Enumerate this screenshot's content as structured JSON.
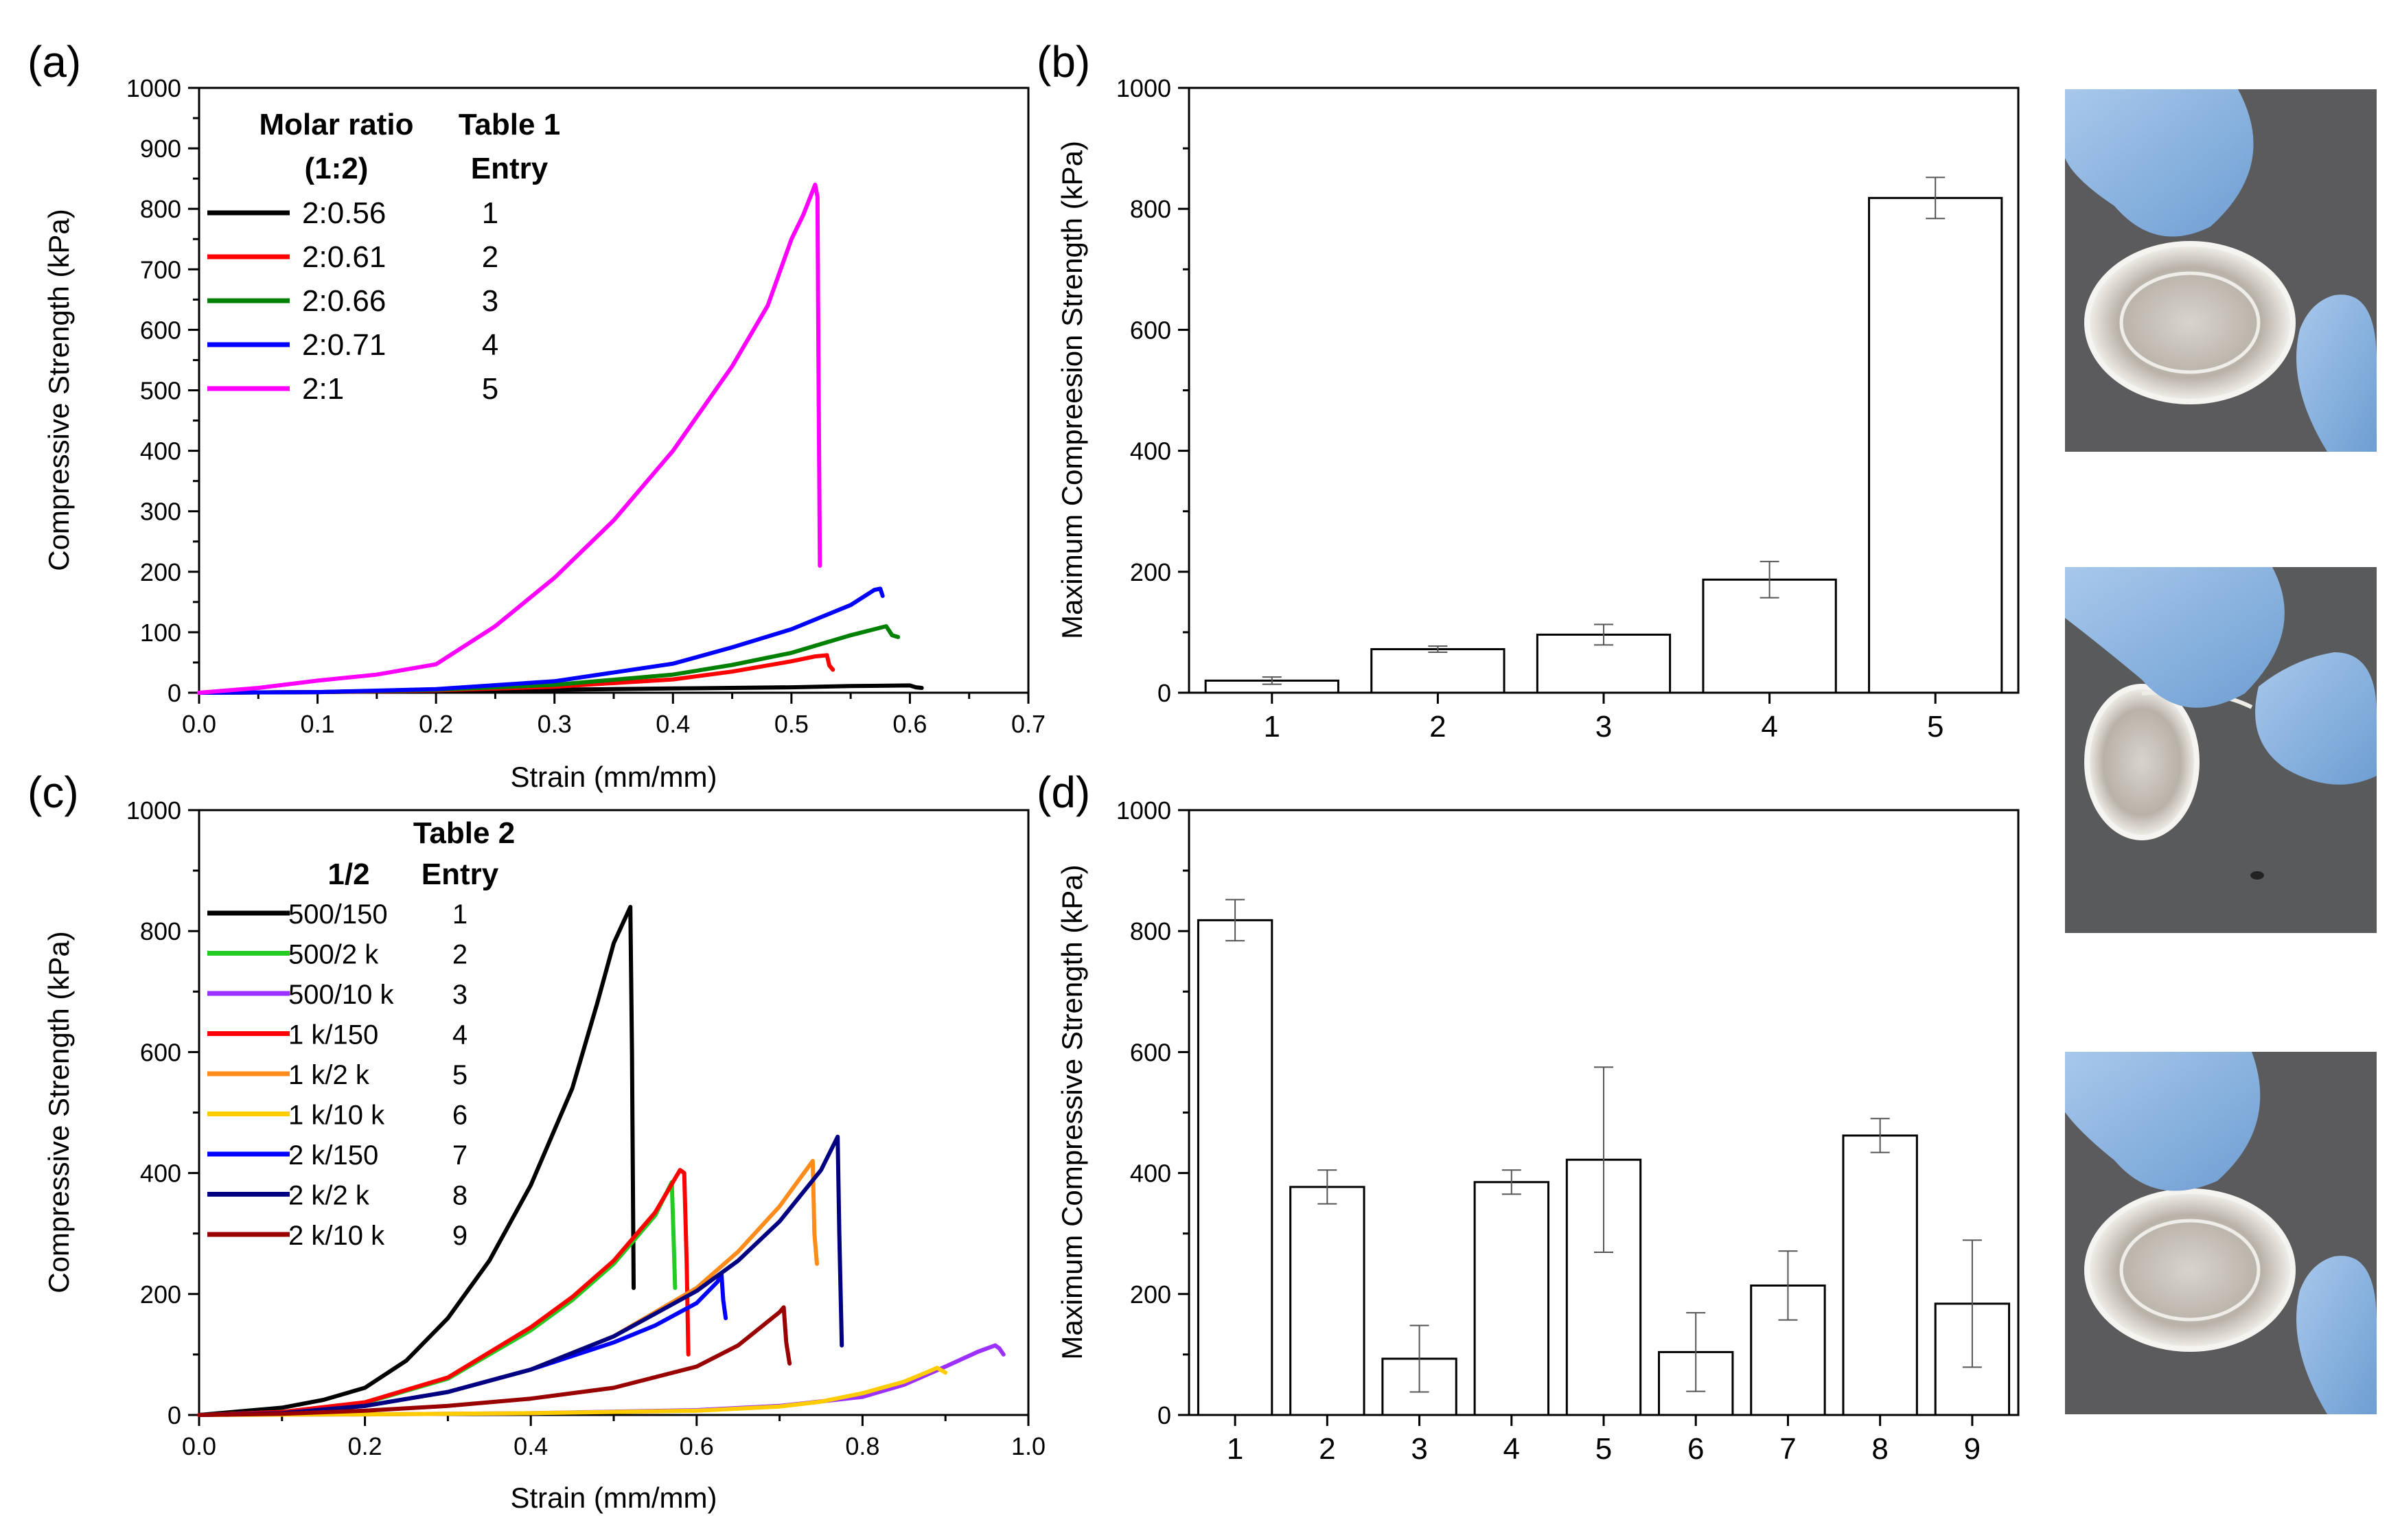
{
  "panels": {
    "a": {
      "letter": "(a)",
      "xlabel": "Strain (mm/mm)",
      "ylabel": "Compressive Strength (kPa)",
      "xlim": [
        0,
        0.7
      ],
      "ylim": [
        0,
        1000
      ],
      "xticks": [
        "0.0",
        "0.1",
        "0.2",
        "0.3",
        "0.4",
        "0.5",
        "0.6",
        "0.7"
      ],
      "yticks": [
        "0",
        "100",
        "200",
        "300",
        "400",
        "500",
        "600",
        "700",
        "800",
        "900",
        "1000"
      ],
      "legend": {
        "col1_title": "Molar ratio",
        "col1_sub": "(1:2)",
        "col2_title": "Table 1",
        "col2_sub": "Entry",
        "items": [
          {
            "label": "2:0.56",
            "entry": "1",
            "color": "#000000"
          },
          {
            "label": "2:0.61",
            "entry": "2",
            "color": "#ff0000"
          },
          {
            "label": "2:0.66",
            "entry": "3",
            "color": "#008000"
          },
          {
            "label": "2:0.71",
            "entry": "4",
            "color": "#0000ff"
          },
          {
            "label": "2:1",
            "entry": "5",
            "color": "#ff00ff"
          }
        ]
      }
    },
    "b": {
      "letter": "(b)",
      "xlabel": "",
      "ylabel": "Maximum Compreesion Strength (kPa)",
      "ylim": [
        0,
        1000
      ],
      "yticks": [
        "0",
        "200",
        "400",
        "600",
        "800",
        "1000"
      ]
    },
    "c": {
      "letter": "(c)",
      "xlabel": "Strain (mm/mm)",
      "ylabel": "Compressive Strength (kPa)",
      "xlim": [
        0,
        1.0
      ],
      "ylim": [
        0,
        1000
      ],
      "xticks": [
        "0.0",
        "0.2",
        "0.4",
        "0.6",
        "0.8",
        "1.0"
      ],
      "yticks": [
        "0",
        "200",
        "400",
        "600",
        "800",
        "1000"
      ],
      "legend": {
        "col1_title": "1/2",
        "col2_title": "Table 2",
        "col2_sub": "Entry",
        "items": [
          {
            "label": "500/150",
            "entry": "1",
            "color": "#000000"
          },
          {
            "label": "500/2 k",
            "entry": "2",
            "color": "#22cc22"
          },
          {
            "label": "500/10 k",
            "entry": "3",
            "color": "#9b30ff"
          },
          {
            "label": "1 k/150",
            "entry": "4",
            "color": "#ff0000"
          },
          {
            "label": "1 k/2 k",
            "entry": "5",
            "color": "#ff8c1a"
          },
          {
            "label": "1 k/10 k",
            "entry": "6",
            "color": "#ffcc00"
          },
          {
            "label": "2 k/150",
            "entry": "7",
            "color": "#0000ff"
          },
          {
            "label": "2 k/2 k",
            "entry": "8",
            "color": "#000080"
          },
          {
            "label": "2 k/10 k",
            "entry": "9",
            "color": "#990000"
          }
        ]
      }
    },
    "d": {
      "letter": "(d)",
      "xlabel": "",
      "ylabel": "Maximum Compressive Strength (kPa)",
      "ylim": [
        0,
        1000
      ],
      "yticks": [
        "0",
        "200",
        "400",
        "600",
        "800",
        "1000"
      ]
    }
  },
  "photos": [
    {
      "name": "photo-gel-gloved-fingers-1"
    },
    {
      "name": "photo-gel-compressed-2"
    },
    {
      "name": "photo-gel-recovered-3"
    }
  ],
  "chart_data": [
    {
      "type": "line",
      "panel": "a",
      "title": "",
      "xlabel": "Strain (mm/mm)",
      "ylabel": "Compressive Strength (kPa)",
      "xlim": [
        0,
        0.7
      ],
      "ylim": [
        0,
        1000
      ],
      "series": [
        {
          "name": "2:0.56",
          "color": "#000000",
          "x": [
            0,
            0.1,
            0.2,
            0.3,
            0.4,
            0.5,
            0.55,
            0.6,
            0.605,
            0.61
          ],
          "y": [
            0,
            1,
            3,
            5,
            7,
            9,
            11,
            12,
            9,
            8
          ]
        },
        {
          "name": "2:0.61",
          "color": "#ff0000",
          "x": [
            0,
            0.1,
            0.2,
            0.3,
            0.4,
            0.45,
            0.5,
            0.52,
            0.53,
            0.532,
            0.535
          ],
          "y": [
            0,
            1,
            4,
            10,
            22,
            35,
            52,
            60,
            62,
            45,
            38
          ]
        },
        {
          "name": "2:0.66",
          "color": "#008000",
          "x": [
            0,
            0.1,
            0.2,
            0.3,
            0.4,
            0.45,
            0.5,
            0.55,
            0.57,
            0.58,
            0.585,
            0.59
          ],
          "y": [
            0,
            1,
            5,
            13,
            30,
            46,
            66,
            95,
            105,
            110,
            95,
            92
          ]
        },
        {
          "name": "2:0.71",
          "color": "#0000ff",
          "x": [
            0,
            0.1,
            0.2,
            0.3,
            0.4,
            0.45,
            0.5,
            0.55,
            0.57,
            0.575,
            0.577
          ],
          "y": [
            0,
            1,
            6,
            19,
            48,
            75,
            105,
            145,
            170,
            172,
            160
          ]
        },
        {
          "name": "2:1",
          "color": "#ff00ff",
          "x": [
            0,
            0.05,
            0.1,
            0.15,
            0.2,
            0.25,
            0.3,
            0.35,
            0.4,
            0.45,
            0.48,
            0.5,
            0.51,
            0.52,
            0.522,
            0.523,
            0.524
          ],
          "y": [
            0,
            8,
            20,
            30,
            47,
            110,
            190,
            285,
            400,
            540,
            640,
            750,
            790,
            840,
            820,
            500,
            210
          ]
        }
      ]
    },
    {
      "type": "bar",
      "panel": "b",
      "title": "",
      "xlabel": "",
      "ylabel": "Maximum Compreesion Strength (kPa)",
      "ylim": [
        0,
        1000
      ],
      "categories": [
        "1",
        "2",
        "3",
        "4",
        "5"
      ],
      "values": [
        20,
        72,
        96,
        187,
        818
      ],
      "errors": [
        6,
        5,
        17,
        30,
        34
      ]
    },
    {
      "type": "line",
      "panel": "c",
      "title": "",
      "xlabel": "Strain (mm/mm)",
      "ylabel": "Compressive Strength (kPa)",
      "xlim": [
        0,
        1.0
      ],
      "ylim": [
        0,
        1000
      ],
      "series": [
        {
          "name": "500/150",
          "color": "#000000",
          "x": [
            0,
            0.1,
            0.15,
            0.2,
            0.25,
            0.3,
            0.35,
            0.4,
            0.45,
            0.48,
            0.5,
            0.51,
            0.52,
            0.522,
            0.524
          ],
          "y": [
            0,
            12,
            25,
            45,
            90,
            160,
            255,
            380,
            540,
            680,
            780,
            810,
            840,
            600,
            210
          ]
        },
        {
          "name": "500/2 k",
          "color": "#22cc22",
          "x": [
            0,
            0.1,
            0.2,
            0.3,
            0.4,
            0.45,
            0.5,
            0.55,
            0.57,
            0.572,
            0.574
          ],
          "y": [
            0,
            5,
            20,
            60,
            140,
            190,
            250,
            330,
            385,
            300,
            210
          ]
        },
        {
          "name": "500/10 k",
          "color": "#9b30ff",
          "x": [
            0,
            0.2,
            0.4,
            0.6,
            0.7,
            0.8,
            0.85,
            0.9,
            0.94,
            0.96,
            0.965,
            0.97
          ],
          "y": [
            0,
            1,
            3,
            8,
            15,
            30,
            50,
            80,
            105,
            115,
            110,
            100
          ]
        },
        {
          "name": "1 k/150",
          "color": "#ff0000",
          "x": [
            0,
            0.1,
            0.2,
            0.3,
            0.4,
            0.45,
            0.5,
            0.55,
            0.58,
            0.585,
            0.588,
            0.59
          ],
          "y": [
            0,
            5,
            21,
            62,
            145,
            195,
            255,
            335,
            405,
            400,
            250,
            100
          ]
        },
        {
          "name": "1 k/2 k",
          "color": "#ff8c1a",
          "x": [
            0,
            0.1,
            0.2,
            0.3,
            0.4,
            0.5,
            0.6,
            0.65,
            0.7,
            0.74,
            0.742,
            0.745
          ],
          "y": [
            0,
            3,
            15,
            38,
            75,
            130,
            210,
            270,
            345,
            420,
            300,
            250
          ]
        },
        {
          "name": "1 k/10 k",
          "color": "#ffcc00",
          "x": [
            0,
            0.2,
            0.4,
            0.6,
            0.7,
            0.75,
            0.8,
            0.85,
            0.88,
            0.89,
            0.9
          ],
          "y": [
            0,
            1,
            3,
            7,
            14,
            22,
            36,
            55,
            72,
            78,
            70
          ]
        },
        {
          "name": "2 k/150",
          "color": "#0000ff",
          "x": [
            0,
            0.1,
            0.2,
            0.3,
            0.4,
            0.5,
            0.55,
            0.6,
            0.625,
            0.63,
            0.632,
            0.635
          ],
          "y": [
            0,
            3,
            15,
            38,
            75,
            120,
            148,
            185,
            220,
            232,
            190,
            160
          ]
        },
        {
          "name": "2 k/2 k",
          "color": "#000080",
          "x": [
            0,
            0.1,
            0.2,
            0.3,
            0.4,
            0.5,
            0.6,
            0.65,
            0.7,
            0.75,
            0.77,
            0.772,
            0.775
          ],
          "y": [
            0,
            3,
            15,
            38,
            75,
            130,
            205,
            255,
            320,
            405,
            460,
            300,
            115
          ]
        },
        {
          "name": "2 k/10 k",
          "color": "#990000",
          "x": [
            0,
            0.1,
            0.2,
            0.3,
            0.4,
            0.5,
            0.6,
            0.65,
            0.7,
            0.705,
            0.708,
            0.712
          ],
          "y": [
            0,
            2,
            7,
            15,
            27,
            45,
            80,
            115,
            170,
            178,
            120,
            85
          ]
        }
      ]
    },
    {
      "type": "bar",
      "panel": "d",
      "title": "",
      "xlabel": "",
      "ylabel": "Maximum Compressive Strength (kPa)",
      "ylim": [
        0,
        1000
      ],
      "categories": [
        "1",
        "2",
        "3",
        "4",
        "5",
        "6",
        "7",
        "8",
        "9"
      ],
      "values": [
        818,
        377,
        93,
        385,
        422,
        104,
        214,
        462,
        184
      ],
      "errors": [
        34,
        28,
        55,
        20,
        153,
        65,
        57,
        28,
        105
      ]
    }
  ]
}
